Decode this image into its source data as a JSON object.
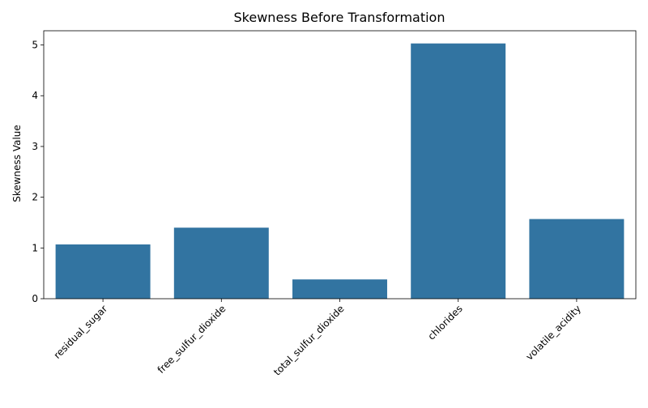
{
  "chart_data": {
    "type": "bar",
    "title": "Skewness Before Transformation",
    "xlabel": "",
    "ylabel": "Skewness Value",
    "categories": [
      "residual_sugar",
      "free_sulfur_dioxide",
      "total_sulfur_dioxide",
      "chlorides",
      "volatile_acidity"
    ],
    "values": [
      1.07,
      1.4,
      0.38,
      5.03,
      1.57
    ],
    "ylim": [
      0,
      5.28
    ],
    "yticks": [
      0,
      1,
      2,
      3,
      4,
      5
    ],
    "bar_color": "#3274a1",
    "grid": false,
    "legend": false
  }
}
